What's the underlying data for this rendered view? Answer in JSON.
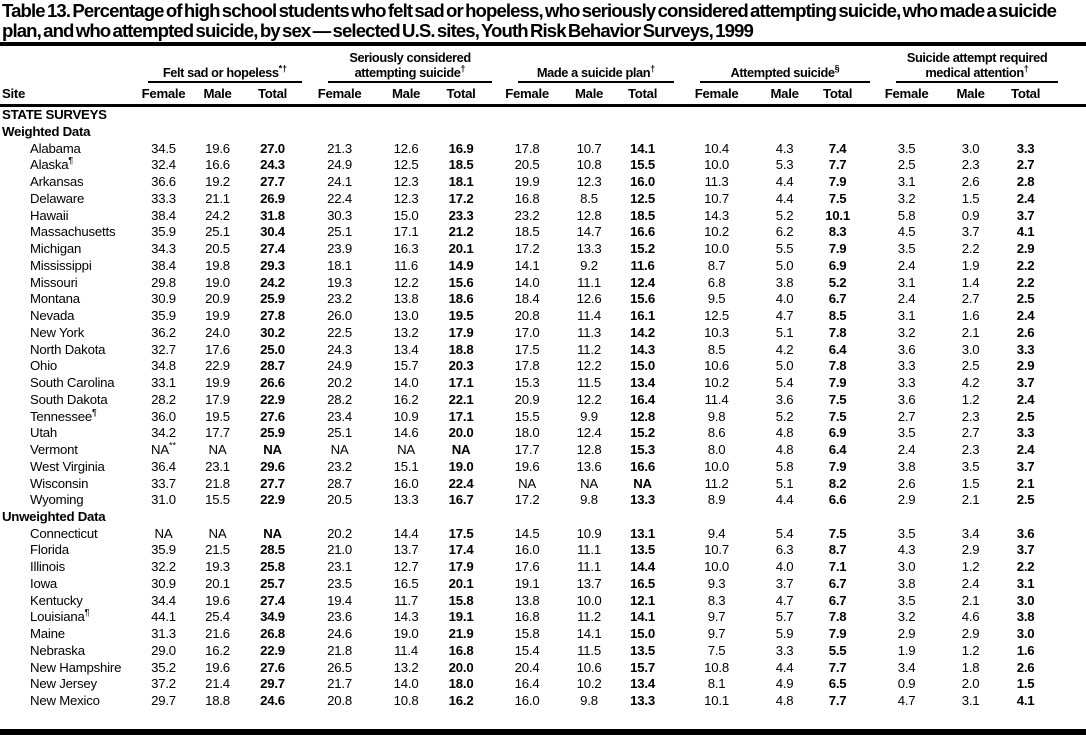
{
  "title": "Table 13. Percentage of high school students who felt sad or hopeless, who seriously considered attempting suicide, who made a suicide plan, and who attempted suicide, by sex — selected U.S. sites, Youth Risk Behavior Surveys, 1999",
  "table": {
    "site_header": "Site",
    "sub_headers": [
      "Female",
      "Male",
      "Total"
    ],
    "groups": [
      {
        "id": "felt-sad-or-hopeless",
        "label": "Felt sad or hopeless",
        "sup": "*†"
      },
      {
        "id": "seriously-considered-attempting-suicide",
        "label": "Seriously considered attempting suicide",
        "sup": "†"
      },
      {
        "id": "made-a-suicide-plan",
        "label": "Made a suicide plan",
        "sup": "†"
      },
      {
        "id": "attempted-suicide",
        "label": "Attempted suicide",
        "sup": "§"
      },
      {
        "id": "suicide-attempt-required-medical-attention",
        "label": "Suicide attempt required medical attention",
        "sup": "†"
      }
    ],
    "sections": [
      {
        "label": "STATE SURVEYS",
        "rows": []
      },
      {
        "label": "Weighted Data",
        "rows": [
          {
            "site": "Alabama",
            "site_sup": "",
            "values": [
              "34.5",
              "19.6",
              "27.0",
              "21.3",
              "12.6",
              "16.9",
              "17.8",
              "10.7",
              "14.1",
              "10.4",
              "4.3",
              "7.4",
              "3.5",
              "3.0",
              "3.3"
            ]
          },
          {
            "site": "Alaska",
            "site_sup": "¶",
            "values": [
              "32.4",
              "16.6",
              "24.3",
              "24.9",
              "12.5",
              "18.5",
              "20.5",
              "10.8",
              "15.5",
              "10.0",
              "5.3",
              "7.7",
              "2.5",
              "2.3",
              "2.7"
            ]
          },
          {
            "site": "Arkansas",
            "site_sup": "",
            "values": [
              "36.6",
              "19.2",
              "27.7",
              "24.1",
              "12.3",
              "18.1",
              "19.9",
              "12.3",
              "16.0",
              "11.3",
              "4.4",
              "7.9",
              "3.1",
              "2.6",
              "2.8"
            ]
          },
          {
            "site": "Delaware",
            "site_sup": "",
            "values": [
              "33.3",
              "21.1",
              "26.9",
              "22.4",
              "12.3",
              "17.2",
              "16.8",
              "8.5",
              "12.5",
              "10.7",
              "4.4",
              "7.5",
              "3.2",
              "1.5",
              "2.4"
            ]
          },
          {
            "site": "Hawaii",
            "site_sup": "",
            "values": [
              "38.4",
              "24.2",
              "31.8",
              "30.3",
              "15.0",
              "23.3",
              "23.2",
              "12.8",
              "18.5",
              "14.3",
              "5.2",
              "10.1",
              "5.8",
              "0.9",
              "3.7"
            ]
          },
          {
            "site": "Massachusetts",
            "site_sup": "",
            "values": [
              "35.9",
              "25.1",
              "30.4",
              "25.1",
              "17.1",
              "21.2",
              "18.5",
              "14.7",
              "16.6",
              "10.2",
              "6.2",
              "8.3",
              "4.5",
              "3.7",
              "4.1"
            ]
          },
          {
            "site": "Michigan",
            "site_sup": "",
            "values": [
              "34.3",
              "20.5",
              "27.4",
              "23.9",
              "16.3",
              "20.1",
              "17.2",
              "13.3",
              "15.2",
              "10.0",
              "5.5",
              "7.9",
              "3.5",
              "2.2",
              "2.9"
            ]
          },
          {
            "site": "Mississippi",
            "site_sup": "",
            "values": [
              "38.4",
              "19.8",
              "29.3",
              "18.1",
              "11.6",
              "14.9",
              "14.1",
              "9.2",
              "11.6",
              "8.7",
              "5.0",
              "6.9",
              "2.4",
              "1.9",
              "2.2"
            ]
          },
          {
            "site": "Missouri",
            "site_sup": "",
            "values": [
              "29.8",
              "19.0",
              "24.2",
              "19.3",
              "12.2",
              "15.6",
              "14.0",
              "11.1",
              "12.4",
              "6.8",
              "3.8",
              "5.2",
              "3.1",
              "1.4",
              "2.2"
            ]
          },
          {
            "site": "Montana",
            "site_sup": "",
            "values": [
              "30.9",
              "20.9",
              "25.9",
              "23.2",
              "13.8",
              "18.6",
              "18.4",
              "12.6",
              "15.6",
              "9.5",
              "4.0",
              "6.7",
              "2.4",
              "2.7",
              "2.5"
            ]
          },
          {
            "site": "Nevada",
            "site_sup": "",
            "values": [
              "35.9",
              "19.9",
              "27.8",
              "26.0",
              "13.0",
              "19.5",
              "20.8",
              "11.4",
              "16.1",
              "12.5",
              "4.7",
              "8.5",
              "3.1",
              "1.6",
              "2.4"
            ]
          },
          {
            "site": "New York",
            "site_sup": "",
            "values": [
              "36.2",
              "24.0",
              "30.2",
              "22.5",
              "13.2",
              "17.9",
              "17.0",
              "11.3",
              "14.2",
              "10.3",
              "5.1",
              "7.8",
              "3.2",
              "2.1",
              "2.6"
            ]
          },
          {
            "site": "North Dakota",
            "site_sup": "",
            "values": [
              "32.7",
              "17.6",
              "25.0",
              "24.3",
              "13.4",
              "18.8",
              "17.5",
              "11.2",
              "14.3",
              "8.5",
              "4.2",
              "6.4",
              "3.6",
              "3.0",
              "3.3"
            ]
          },
          {
            "site": "Ohio",
            "site_sup": "",
            "values": [
              "34.8",
              "22.9",
              "28.7",
              "24.9",
              "15.7",
              "20.3",
              "17.8",
              "12.2",
              "15.0",
              "10.6",
              "5.0",
              "7.8",
              "3.3",
              "2.5",
              "2.9"
            ]
          },
          {
            "site": "South Carolina",
            "site_sup": "",
            "values": [
              "33.1",
              "19.9",
              "26.6",
              "20.2",
              "14.0",
              "17.1",
              "15.3",
              "11.5",
              "13.4",
              "10.2",
              "5.4",
              "7.9",
              "3.3",
              "4.2",
              "3.7"
            ]
          },
          {
            "site": "South Dakota",
            "site_sup": "",
            "values": [
              "28.2",
              "17.9",
              "22.9",
              "28.2",
              "16.2",
              "22.1",
              "20.9",
              "12.2",
              "16.4",
              "11.4",
              "3.6",
              "7.5",
              "3.6",
              "1.2",
              "2.4"
            ]
          },
          {
            "site": "Tennessee",
            "site_sup": "¶",
            "values": [
              "36.0",
              "19.5",
              "27.6",
              "23.4",
              "10.9",
              "17.1",
              "15.5",
              "9.9",
              "12.8",
              "9.8",
              "5.2",
              "7.5",
              "2.7",
              "2.3",
              "2.5"
            ]
          },
          {
            "site": "Utah",
            "site_sup": "",
            "values": [
              "34.2",
              "17.7",
              "25.9",
              "25.1",
              "14.6",
              "20.0",
              "18.0",
              "12.4",
              "15.2",
              "8.6",
              "4.8",
              "6.9",
              "3.5",
              "2.7",
              "3.3"
            ]
          },
          {
            "site": "Vermont",
            "site_sup": "",
            "values": [
              "NA**",
              "NA",
              "NA",
              "NA",
              "NA",
              "NA",
              "17.7",
              "12.8",
              "15.3",
              "8.0",
              "4.8",
              "6.4",
              "2.4",
              "2.3",
              "2.4"
            ]
          },
          {
            "site": "West Virginia",
            "site_sup": "",
            "values": [
              "36.4",
              "23.1",
              "29.6",
              "23.2",
              "15.1",
              "19.0",
              "19.6",
              "13.6",
              "16.6",
              "10.0",
              "5.8",
              "7.9",
              "3.8",
              "3.5",
              "3.7"
            ]
          },
          {
            "site": "Wisconsin",
            "site_sup": "",
            "values": [
              "33.7",
              "21.8",
              "27.7",
              "28.7",
              "16.0",
              "22.4",
              "NA",
              "NA",
              "NA",
              "11.2",
              "5.1",
              "8.2",
              "2.6",
              "1.5",
              "2.1"
            ]
          },
          {
            "site": "Wyoming",
            "site_sup": "",
            "values": [
              "31.0",
              "15.5",
              "22.9",
              "20.5",
              "13.3",
              "16.7",
              "17.2",
              "9.8",
              "13.3",
              "8.9",
              "4.4",
              "6.6",
              "2.9",
              "2.1",
              "2.5"
            ]
          }
        ]
      },
      {
        "label": "Unweighted Data",
        "rows": [
          {
            "site": "Connecticut",
            "site_sup": "",
            "values": [
              "NA",
              "NA",
              "NA",
              "20.2",
              "14.4",
              "17.5",
              "14.5",
              "10.9",
              "13.1",
              "9.4",
              "5.4",
              "7.5",
              "3.5",
              "3.4",
              "3.6"
            ]
          },
          {
            "site": "Florida",
            "site_sup": "",
            "values": [
              "35.9",
              "21.5",
              "28.5",
              "21.0",
              "13.7",
              "17.4",
              "16.0",
              "11.1",
              "13.5",
              "10.7",
              "6.3",
              "8.7",
              "4.3",
              "2.9",
              "3.7"
            ]
          },
          {
            "site": "Illinois",
            "site_sup": "",
            "values": [
              "32.2",
              "19.3",
              "25.8",
              "23.1",
              "12.7",
              "17.9",
              "17.6",
              "11.1",
              "14.4",
              "10.0",
              "4.0",
              "7.1",
              "3.0",
              "1.2",
              "2.2"
            ]
          },
          {
            "site": "Iowa",
            "site_sup": "",
            "values": [
              "30.9",
              "20.1",
              "25.7",
              "23.5",
              "16.5",
              "20.1",
              "19.1",
              "13.7",
              "16.5",
              "9.3",
              "3.7",
              "6.7",
              "3.8",
              "2.4",
              "3.1"
            ]
          },
          {
            "site": "Kentucky",
            "site_sup": "",
            "values": [
              "34.4",
              "19.6",
              "27.4",
              "19.4",
              "11.7",
              "15.8",
              "13.8",
              "10.0",
              "12.1",
              "8.3",
              "4.7",
              "6.7",
              "3.5",
              "2.1",
              "3.0"
            ]
          },
          {
            "site": "Louisiana",
            "site_sup": "¶",
            "values": [
              "44.1",
              "25.4",
              "34.9",
              "23.6",
              "14.3",
              "19.1",
              "16.8",
              "11.2",
              "14.1",
              "9.7",
              "5.7",
              "7.8",
              "3.2",
              "4.6",
              "3.8"
            ]
          },
          {
            "site": "Maine",
            "site_sup": "",
            "values": [
              "31.3",
              "21.6",
              "26.8",
              "24.6",
              "19.0",
              "21.9",
              "15.8",
              "14.1",
              "15.0",
              "9.7",
              "5.9",
              "7.9",
              "2.9",
              "2.9",
              "3.0"
            ]
          },
          {
            "site": "Nebraska",
            "site_sup": "",
            "values": [
              "29.0",
              "16.2",
              "22.9",
              "21.8",
              "11.4",
              "16.8",
              "15.4",
              "11.5",
              "13.5",
              "7.5",
              "3.3",
              "5.5",
              "1.9",
              "1.2",
              "1.6"
            ]
          },
          {
            "site": "New Hampshire",
            "site_sup": "",
            "values": [
              "35.2",
              "19.6",
              "27.6",
              "26.5",
              "13.2",
              "20.0",
              "20.4",
              "10.6",
              "15.7",
              "10.8",
              "4.4",
              "7.7",
              "3.4",
              "1.8",
              "2.6"
            ]
          },
          {
            "site": "New Jersey",
            "site_sup": "",
            "values": [
              "37.2",
              "21.4",
              "29.7",
              "21.7",
              "14.0",
              "18.0",
              "16.4",
              "10.2",
              "13.4",
              "8.1",
              "4.9",
              "6.5",
              "0.9",
              "2.0",
              "1.5"
            ]
          },
          {
            "site": "New Mexico",
            "site_sup": "",
            "values": [
              "29.7",
              "18.8",
              "24.6",
              "20.8",
              "10.8",
              "16.2",
              "16.0",
              "9.8",
              "13.3",
              "10.1",
              "4.8",
              "7.7",
              "4.7",
              "3.1",
              "4.1"
            ]
          }
        ]
      }
    ]
  }
}
